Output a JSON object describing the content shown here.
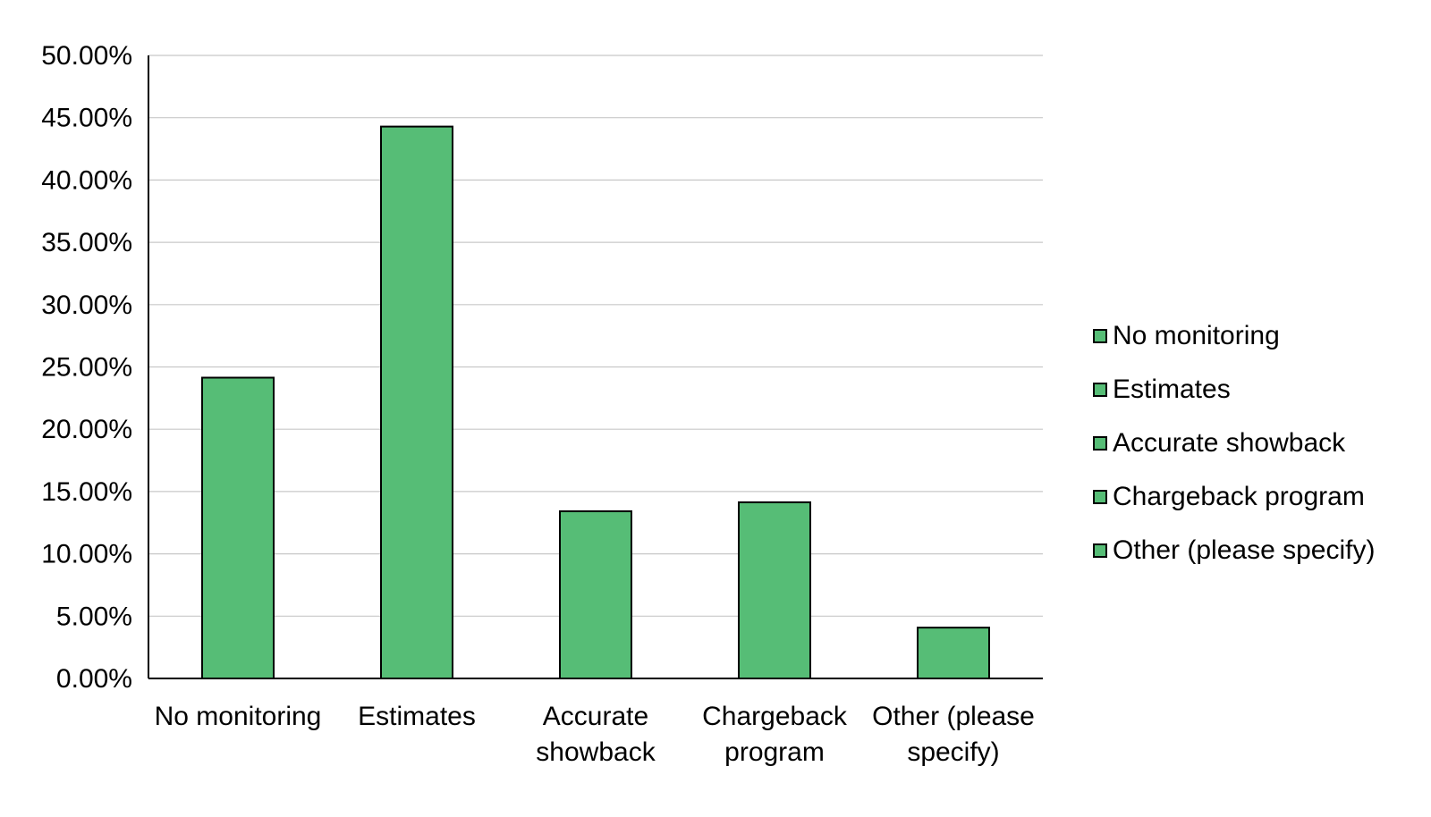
{
  "chart_data": {
    "type": "bar",
    "categories": [
      "No monitoring",
      "Estimates",
      "Accurate showback",
      "Chargeback program",
      "Other (please specify)"
    ],
    "category_tick_lines": [
      [
        "No monitoring"
      ],
      [
        "Estimates"
      ],
      [
        "Accurate",
        "showback"
      ],
      [
        "Chargeback",
        "program"
      ],
      [
        "Other (please",
        "specify)"
      ]
    ],
    "values": [
      24.14,
      44.29,
      13.42,
      14.14,
      4.08
    ],
    "y_tick_labels": [
      "0.00%",
      "5.00%",
      "10.00%",
      "15.00%",
      "20.00%",
      "25.00%",
      "30.00%",
      "35.00%",
      "40.00%",
      "45.00%",
      "50.00%"
    ],
    "ylim": [
      0,
      50
    ],
    "y_unit": "%",
    "title": "",
    "xlabel": "",
    "ylabel": "",
    "grid": "horizontal",
    "legend": {
      "placement": "right",
      "entries": [
        "No monitoring",
        "Estimates",
        "Accurate showback",
        "Chargeback program",
        "Other (please specify)"
      ]
    },
    "colors": {
      "bar_fill": "#56bd76",
      "bar_stroke": "#000000",
      "grid": "#c8c8c8",
      "axis": "#000000",
      "text": "#000000"
    }
  }
}
